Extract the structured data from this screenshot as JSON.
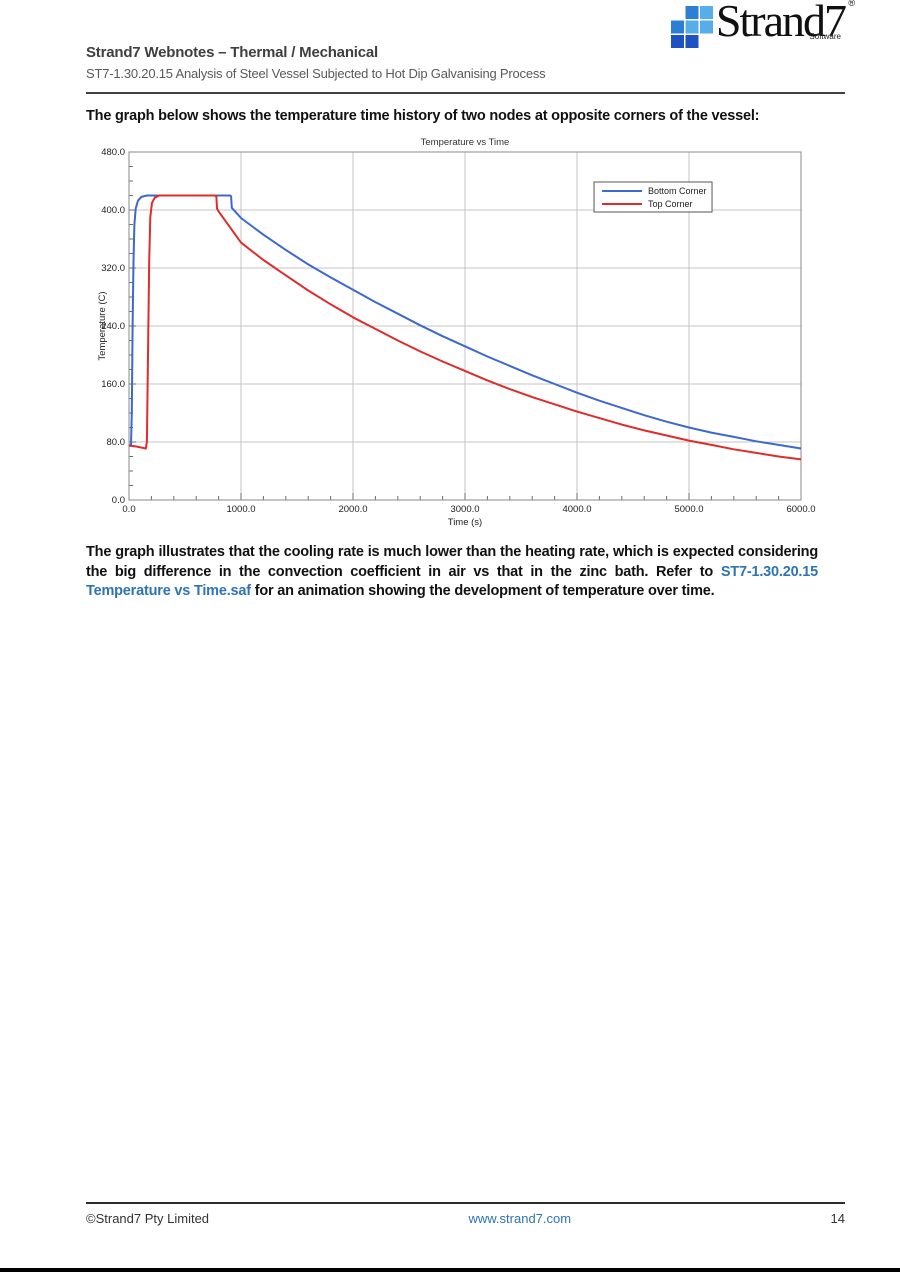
{
  "header": {
    "title": "Strand7 Webnotes – Thermal / Mechanical",
    "subtitle": "ST7-1.30.20.15 Analysis of Steel Vessel Subjected to Hot Dip Galvanising Process",
    "logo": {
      "text": "Strand7",
      "subtext": "Software",
      "registered_mark": "®"
    }
  },
  "intro_paragraph": "The graph below shows the temperature time history of two nodes at opposite corners of the vessel:",
  "body_paragraph": {
    "before_link": "The graph illustrates that the cooling rate is much lower than the heating rate, which is expected considering the big difference in the convection coefficient in air vs that in the zinc bath.  Refer to ",
    "link_text": "ST7-1.30.20.15 Temperature vs Time.saf",
    "after_link": " for an animation showing the development of temperature over time."
  },
  "footer": {
    "copyright": "©Strand7 Pty Limited",
    "website": "www.strand7.com",
    "page_number": "14"
  },
  "colors": {
    "link_blue": "#2e74b5",
    "logo_blue_light": "#55aeea",
    "logo_blue_mid": "#2d7fd6",
    "logo_blue_dark": "#1d52c0",
    "series_blue": "#3c68cf",
    "series_red": "#e02b2b"
  },
  "chart_data": {
    "type": "line",
    "title": "Temperature vs Time",
    "xlabel": "Time (s)",
    "ylabel": "Temperature (C)",
    "xlim": [
      0,
      6000
    ],
    "ylim": [
      0,
      480
    ],
    "x_ticks": [
      0,
      1000,
      2000,
      3000,
      4000,
      5000,
      6000
    ],
    "y_ticks": [
      0,
      80,
      160,
      240,
      320,
      400,
      480
    ],
    "x_minor_step": 200,
    "y_minor_step": 20,
    "grid": true,
    "legend_position": "top-right",
    "series": [
      {
        "name": "Bottom Corner",
        "color": "#3c68cf",
        "points": [
          [
            0,
            75
          ],
          [
            18,
            76
          ],
          [
            25,
            120
          ],
          [
            32,
            240
          ],
          [
            40,
            330
          ],
          [
            48,
            380
          ],
          [
            60,
            402
          ],
          [
            80,
            413
          ],
          [
            110,
            418
          ],
          [
            160,
            420
          ],
          [
            900,
            420
          ],
          [
            912,
            419
          ],
          [
            918,
            403
          ],
          [
            1000,
            389
          ],
          [
            1200,
            366
          ],
          [
            1400,
            345
          ],
          [
            1600,
            325
          ],
          [
            1800,
            307
          ],
          [
            2000,
            290
          ],
          [
            2200,
            273
          ],
          [
            2400,
            257
          ],
          [
            2600,
            241
          ],
          [
            2800,
            226
          ],
          [
            3000,
            212
          ],
          [
            3200,
            198
          ],
          [
            3400,
            185
          ],
          [
            3600,
            172
          ],
          [
            3800,
            160
          ],
          [
            4000,
            148
          ],
          [
            4200,
            137
          ],
          [
            4400,
            127
          ],
          [
            4600,
            117
          ],
          [
            4800,
            108
          ],
          [
            5000,
            100
          ],
          [
            5200,
            93
          ],
          [
            5400,
            87
          ],
          [
            5600,
            81
          ],
          [
            5800,
            76
          ],
          [
            6000,
            71
          ]
        ]
      },
      {
        "name": "Top Corner",
        "color": "#e02b2b",
        "points": [
          [
            0,
            75
          ],
          [
            60,
            74
          ],
          [
            120,
            72
          ],
          [
            150,
            71
          ],
          [
            160,
            80
          ],
          [
            170,
            200
          ],
          [
            180,
            330
          ],
          [
            190,
            390
          ],
          [
            205,
            410
          ],
          [
            230,
            417
          ],
          [
            270,
            420
          ],
          [
            770,
            420
          ],
          [
            780,
            418
          ],
          [
            786,
            402
          ],
          [
            800,
            398
          ],
          [
            1000,
            355
          ],
          [
            1200,
            331
          ],
          [
            1400,
            310
          ],
          [
            1600,
            289
          ],
          [
            1800,
            270
          ],
          [
            2000,
            252
          ],
          [
            2200,
            236
          ],
          [
            2400,
            220
          ],
          [
            2600,
            205
          ],
          [
            2800,
            191
          ],
          [
            3000,
            178
          ],
          [
            3200,
            165
          ],
          [
            3400,
            153
          ],
          [
            3600,
            142
          ],
          [
            3800,
            132
          ],
          [
            4000,
            122
          ],
          [
            4200,
            113
          ],
          [
            4400,
            104
          ],
          [
            4600,
            96
          ],
          [
            4800,
            89
          ],
          [
            5000,
            82
          ],
          [
            5200,
            76
          ],
          [
            5400,
            70
          ],
          [
            5600,
            65
          ],
          [
            5800,
            60
          ],
          [
            6000,
            56
          ]
        ]
      }
    ]
  }
}
